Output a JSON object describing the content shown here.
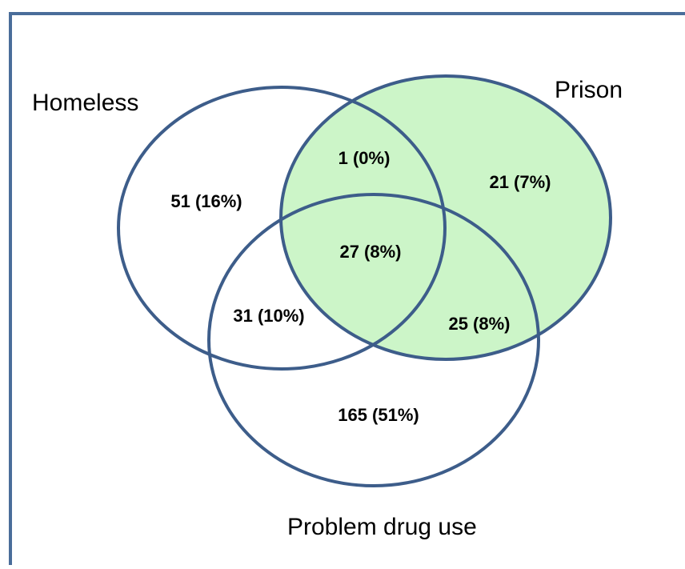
{
  "diagram": {
    "type": "venn",
    "colors": {
      "border": "#4a6d9a",
      "circle_stroke": "#3d5d8a",
      "prison_fill": "#ccf5c8",
      "background": "#ffffff"
    },
    "sets": {
      "homeless": "Homeless",
      "prison": "Prison",
      "drug": "Problem drug use"
    },
    "regions": {
      "homeless_only": "51 (16%)",
      "homeless_prison": "1 (0%)",
      "prison_only": "21 (7%)",
      "all_three": "27 (8%)",
      "homeless_drug": "31 (10%)",
      "prison_drug": "25 (8%)",
      "drug_only": "165 (51%)"
    }
  }
}
